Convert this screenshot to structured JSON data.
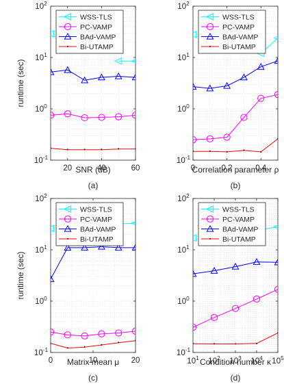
{
  "figure": {
    "panels": [
      "a",
      "b",
      "c",
      "d"
    ]
  },
  "chart_data": [
    {
      "type": "line",
      "panel_label": "(a)",
      "xlabel": "SNR (dB)",
      "ylabel": "runtime (sec)",
      "yscale": "log",
      "xscale": "linear",
      "xlim": [
        10,
        60
      ],
      "ylim": [
        0.1,
        100
      ],
      "x_ticks": [
        20,
        40,
        60
      ],
      "x_tick_labels": [
        "20",
        "40",
        "60"
      ],
      "x_minor": [
        10,
        30,
        50
      ],
      "grid": true,
      "legend_position": "top-left",
      "x": [
        10,
        20,
        30,
        40,
        50,
        60
      ],
      "series": [
        {
          "name": "WSS-TLS",
          "color": "#00ffff",
          "marker": "triangle-left",
          "values": [
            29,
            null,
            null,
            null,
            8.5,
            8.5
          ]
        },
        {
          "name": "PC-VAMP",
          "color": "#ff00ff",
          "marker": "circle",
          "values": [
            0.75,
            0.8,
            0.67,
            0.68,
            0.7,
            0.75
          ]
        },
        {
          "name": "BAd-VAMP",
          "color": "#0000ff",
          "marker": "triangle-up",
          "values": [
            5.2,
            5.7,
            3.6,
            4.1,
            4.3,
            4.1
          ]
        },
        {
          "name": "Bi-UTAMP",
          "color": "#ff0000",
          "marker": "dot",
          "values": [
            0.17,
            0.16,
            0.16,
            0.16,
            0.165,
            0.165
          ]
        }
      ]
    },
    {
      "type": "line",
      "panel_label": "(b)",
      "xlabel": "Correlation parameter ρ",
      "ylabel": "",
      "yscale": "log",
      "xscale": "linear",
      "xlim": [
        0,
        0.5
      ],
      "ylim": [
        0.1,
        100
      ],
      "x_ticks": [
        0,
        0.2,
        0.4
      ],
      "x_tick_labels": [
        "0",
        "0.2",
        "0.4"
      ],
      "x_minor": [
        0.1,
        0.3,
        0.5
      ],
      "grid": true,
      "legend_position": "top-left",
      "x": [
        0,
        0.1,
        0.2,
        0.3,
        0.4,
        0.5
      ],
      "series": [
        {
          "name": "WSS-TLS",
          "color": "#00ffff",
          "marker": "triangle-left",
          "values": [
            28,
            null,
            null,
            null,
            12,
            24
          ]
        },
        {
          "name": "PC-VAMP",
          "color": "#ff00ff",
          "marker": "circle",
          "values": [
            0.25,
            0.26,
            0.28,
            0.68,
            1.6,
            1.9
          ]
        },
        {
          "name": "BAd-VAMP",
          "color": "#0000ff",
          "marker": "triangle-up",
          "values": [
            2.7,
            2.5,
            2.8,
            4.1,
            6.6,
            8.6
          ]
        },
        {
          "name": "Bi-UTAMP",
          "color": "#ff0000",
          "marker": "dot",
          "values": [
            0.148,
            0.148,
            0.145,
            0.155,
            0.145,
            0.26
          ]
        }
      ]
    },
    {
      "type": "line",
      "panel_label": "(c)",
      "xlabel": "Matrix mean μ",
      "ylabel": "runtime (sec)",
      "yscale": "log",
      "xscale": "linear",
      "xlim": [
        0,
        20
      ],
      "ylim": [
        0.1,
        100
      ],
      "x_ticks": [
        0,
        10,
        20
      ],
      "x_tick_labels": [
        "0",
        "10",
        "20"
      ],
      "x_minor": [
        5,
        15
      ],
      "grid": true,
      "legend_position": "top-left",
      "x": [
        0,
        4,
        8,
        12,
        16,
        20
      ],
      "series": [
        {
          "name": "WSS-TLS",
          "color": "#00ffff",
          "marker": "triangle-left",
          "values": [
            26,
            null,
            null,
            null,
            32,
            33
          ]
        },
        {
          "name": "PC-VAMP",
          "color": "#ff00ff",
          "marker": "circle",
          "values": [
            0.25,
            0.22,
            0.21,
            0.23,
            0.24,
            0.26
          ]
        },
        {
          "name": "BAd-VAMP",
          "color": "#0000ff",
          "marker": "triangle-up",
          "values": [
            2.7,
            11,
            11,
            11.5,
            11,
            11
          ]
        },
        {
          "name": "Bi-UTAMP",
          "color": "#ff0000",
          "marker": "dot",
          "values": [
            0.15,
            0.122,
            0.127,
            0.14,
            0.155,
            0.17
          ]
        }
      ]
    },
    {
      "type": "line",
      "panel_label": "(d)",
      "xlabel": "Condition number κ",
      "ylabel": "",
      "yscale": "log",
      "xscale": "log",
      "xlim": [
        10,
        100000
      ],
      "ylim": [
        0.1,
        100
      ],
      "x_ticks": [
        10,
        100,
        1000,
        10000,
        100000
      ],
      "x_tick_exponents": [
        "1",
        "2",
        "3",
        "4",
        "5"
      ],
      "grid": true,
      "legend_position": "top-left",
      "x": [
        10,
        100,
        1000,
        10000,
        100000
      ],
      "series": [
        {
          "name": "WSS-TLS",
          "color": "#00ffff",
          "marker": "triangle-left",
          "values": [
            17,
            null,
            null,
            24,
            28
          ]
        },
        {
          "name": "PC-VAMP",
          "color": "#ff00ff",
          "marker": "circle",
          "values": [
            0.31,
            0.48,
            0.72,
            1.1,
            1.7
          ]
        },
        {
          "name": "BAd-VAMP",
          "color": "#0000ff",
          "marker": "triangle-up",
          "values": [
            3.4,
            3.9,
            4.7,
            5.8,
            5.7
          ]
        },
        {
          "name": "Bi-UTAMP",
          "color": "#ff0000",
          "marker": "dot",
          "values": [
            0.148,
            0.147,
            0.147,
            0.15,
            0.24
          ]
        }
      ]
    }
  ],
  "y_tick_exponents": [
    "-1",
    "0",
    "1",
    "2"
  ]
}
